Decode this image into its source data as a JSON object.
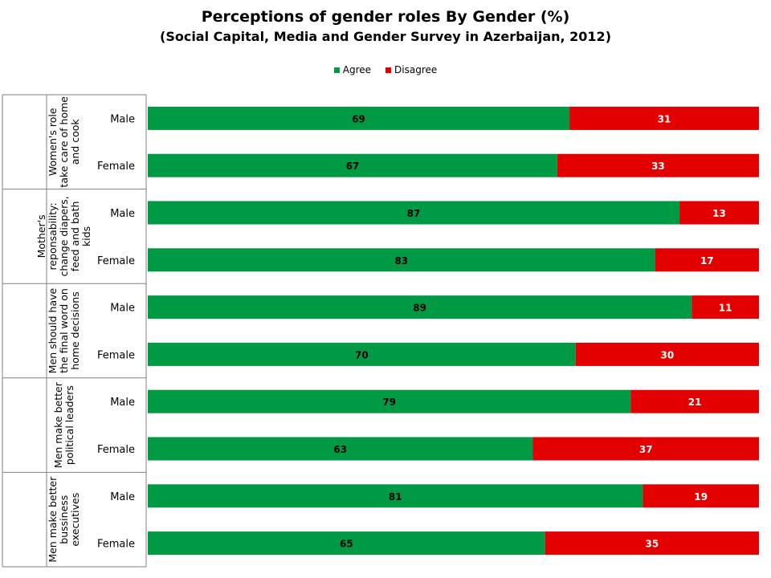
{
  "chart_data": {
    "type": "bar",
    "orientation": "horizontal",
    "stacked": true,
    "title": "Perceptions of gender roles By Gender (%)",
    "subtitle": "(Social Capital, Media and Gender Survey in Azerbaijan, 2012)",
    "legend": {
      "position": "top",
      "entries": [
        "Agree",
        "Disagree"
      ]
    },
    "colors": {
      "Agree": "#009a44",
      "Disagree": "#e30000"
    },
    "xlim": [
      0,
      100
    ],
    "grid": false,
    "groups": [
      {
        "label": "Women's role take care of home and cook",
        "label_lines": [
          "Women's role",
          "take care of home",
          "and cook"
        ]
      },
      {
        "label": "Mother's reponsability: change diapers, feed and bath kids",
        "label_lines": [
          "Mother's",
          "reponsability:",
          "change diapers,",
          "feed and bath",
          "kids"
        ]
      },
      {
        "label": "Men should have the final word on home decisions",
        "label_lines": [
          "Men should have",
          "the final word on",
          "home decisions"
        ]
      },
      {
        "label": "Men make better political leaders",
        "label_lines": [
          "Men make better",
          "political leaders"
        ]
      },
      {
        "label": "Men make better bussiness executives",
        "label_lines": [
          "Men make better",
          "bussiness",
          "executives"
        ]
      }
    ],
    "categories": [
      "Male",
      "Female"
    ],
    "series": [
      {
        "name": "Agree",
        "values": [
          [
            69,
            67
          ],
          [
            87,
            83
          ],
          [
            89,
            70
          ],
          [
            79,
            63
          ],
          [
            81,
            65
          ]
        ]
      },
      {
        "name": "Disagree",
        "values": [
          [
            31,
            33
          ],
          [
            13,
            17
          ],
          [
            11,
            30
          ],
          [
            21,
            37
          ],
          [
            19,
            35
          ]
        ]
      }
    ]
  }
}
